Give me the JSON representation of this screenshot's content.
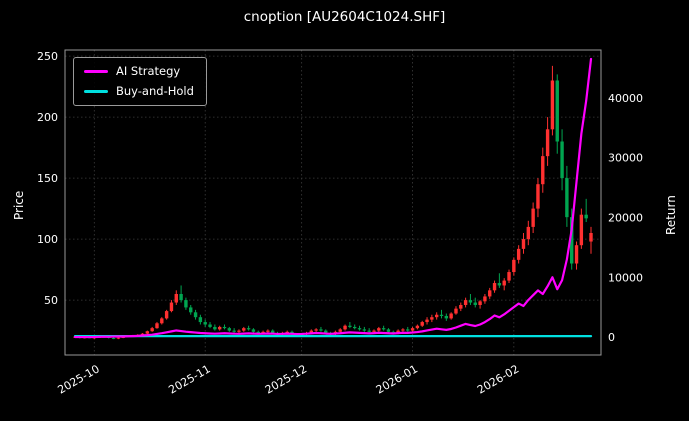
{
  "title": "cnoption [AU2604C1024.SHF]",
  "axes": {
    "left_label": "Price",
    "right_label": "Return"
  },
  "legend": {
    "items": [
      {
        "label": "AI Strategy",
        "color": "#ff00ff"
      },
      {
        "label": "Buy-and-Hold",
        "color": "#00e0e0"
      }
    ]
  },
  "chart_data": {
    "type": "candlestick+line",
    "title": "cnoption [AU2604C1024.SHF]",
    "xlabel": "",
    "ylabel_left": "Price",
    "ylabel_right": "Return",
    "grid": true,
    "legend_position": "upper-left",
    "background": "#000000",
    "text_color": "#ffffff",
    "grid_color": "#3c3c3c",
    "spine_color": "#999999",
    "up_color": "#ff3030",
    "down_color": "#00a550",
    "x_ticklabels": [
      "2025-10",
      "2025-11",
      "2025-12",
      "2026-01",
      "2026-02"
    ],
    "x_tick_indices": [
      4,
      27,
      47,
      70,
      91
    ],
    "left_ticks": [
      50,
      100,
      150,
      200,
      250
    ],
    "right_ticks": [
      0,
      10000,
      20000,
      30000,
      40000
    ],
    "price_range": [
      5,
      255
    ],
    "return_range": [
      -3000,
      48000
    ],
    "candles": [
      [
        19.5,
        20.5,
        19,
        20
      ],
      [
        20,
        20.5,
        18.5,
        19
      ],
      [
        19,
        20,
        18.5,
        19.5
      ],
      [
        19.5,
        20,
        18.8,
        19.2
      ],
      [
        19,
        20,
        18,
        19.5
      ],
      [
        19.5,
        20.5,
        19,
        20
      ],
      [
        20,
        21,
        19.5,
        19.8
      ],
      [
        19.8,
        20.2,
        18.5,
        19
      ],
      [
        19,
        19.5,
        18,
        18.5
      ],
      [
        18.5,
        19.5,
        18,
        19.2
      ],
      [
        19.2,
        20,
        18.8,
        19.8
      ],
      [
        19.8,
        21,
        19.5,
        20.5
      ],
      [
        20.5,
        21.5,
        20,
        21
      ],
      [
        21,
        22,
        20.5,
        21.5
      ],
      [
        21.5,
        23,
        21,
        22.5
      ],
      [
        22.5,
        25,
        22,
        24.5
      ],
      [
        24.5,
        28,
        24,
        27
      ],
      [
        27,
        32,
        26.5,
        31
      ],
      [
        31,
        36,
        30,
        35
      ],
      [
        35,
        42,
        34,
        41
      ],
      [
        41,
        50,
        40,
        48
      ],
      [
        48,
        58,
        46,
        55
      ],
      [
        55,
        62,
        48,
        50
      ],
      [
        50,
        52,
        42,
        44
      ],
      [
        44,
        46,
        38,
        40
      ],
      [
        40,
        42,
        34,
        36
      ],
      [
        36,
        38,
        30,
        32
      ],
      [
        32,
        34,
        28,
        30
      ],
      [
        30,
        32,
        27,
        28
      ],
      [
        28,
        30,
        25,
        26
      ],
      [
        26,
        29,
        25,
        28
      ],
      [
        28,
        30,
        26,
        27
      ],
      [
        27,
        28,
        24,
        25
      ],
      [
        25,
        27,
        23,
        24
      ],
      [
        24,
        26,
        22,
        25
      ],
      [
        25,
        28,
        24,
        27
      ],
      [
        27,
        29,
        25,
        26
      ],
      [
        26,
        27,
        23,
        24
      ],
      [
        24,
        25,
        22,
        23
      ],
      [
        23,
        25,
        22,
        24
      ],
      [
        24,
        26,
        23,
        25
      ],
      [
        25,
        26,
        22,
        23
      ],
      [
        23,
        24,
        21,
        22
      ],
      [
        22,
        24,
        21,
        23
      ],
      [
        23,
        25,
        22,
        24
      ],
      [
        24,
        25,
        21,
        22
      ],
      [
        22,
        23,
        20,
        21
      ],
      [
        21,
        23,
        20,
        22
      ],
      [
        22,
        24,
        21,
        23
      ],
      [
        23,
        26,
        22,
        25
      ],
      [
        25,
        27,
        24,
        26
      ],
      [
        26,
        28,
        24,
        25
      ],
      [
        25,
        26,
        22,
        23
      ],
      [
        23,
        24,
        21,
        22
      ],
      [
        22,
        25,
        21,
        24
      ],
      [
        24,
        27,
        23,
        26
      ],
      [
        26,
        30,
        25,
        29
      ],
      [
        29,
        32,
        27,
        28
      ],
      [
        28,
        30,
        26,
        27
      ],
      [
        27,
        29,
        25,
        26
      ],
      [
        26,
        28,
        24,
        25
      ],
      [
        25,
        27,
        23,
        24
      ],
      [
        24,
        26,
        23,
        25
      ],
      [
        25,
        28,
        24,
        27
      ],
      [
        27,
        29,
        25,
        26
      ],
      [
        26,
        27,
        23,
        24
      ],
      [
        24,
        25,
        22,
        23
      ],
      [
        23,
        26,
        22,
        25
      ],
      [
        25,
        27,
        24,
        26
      ],
      [
        26,
        28,
        24,
        25
      ],
      [
        25,
        28,
        24,
        27
      ],
      [
        27,
        30,
        26,
        29
      ],
      [
        29,
        33,
        28,
        32
      ],
      [
        32,
        36,
        30,
        34
      ],
      [
        34,
        38,
        32,
        36
      ],
      [
        36,
        40,
        34,
        38
      ],
      [
        38,
        42,
        35,
        37
      ],
      [
        37,
        39,
        33,
        35
      ],
      [
        35,
        40,
        34,
        39
      ],
      [
        39,
        45,
        38,
        43
      ],
      [
        43,
        48,
        41,
        46
      ],
      [
        46,
        52,
        44,
        50
      ],
      [
        50,
        55,
        46,
        48
      ],
      [
        48,
        52,
        44,
        46
      ],
      [
        46,
        50,
        43,
        49
      ],
      [
        49,
        55,
        47,
        53
      ],
      [
        53,
        60,
        51,
        58
      ],
      [
        58,
        66,
        56,
        64
      ],
      [
        64,
        72,
        60,
        62
      ],
      [
        62,
        68,
        58,
        66
      ],
      [
        66,
        75,
        64,
        73
      ],
      [
        73,
        85,
        70,
        83
      ],
      [
        83,
        95,
        80,
        92
      ],
      [
        92,
        105,
        88,
        100
      ],
      [
        100,
        115,
        95,
        110
      ],
      [
        110,
        130,
        105,
        125
      ],
      [
        125,
        150,
        118,
        145
      ],
      [
        145,
        175,
        138,
        168
      ],
      [
        168,
        200,
        160,
        190
      ],
      [
        190,
        242,
        185,
        230
      ],
      [
        230,
        235,
        170,
        180
      ],
      [
        180,
        190,
        140,
        150
      ],
      [
        150,
        160,
        110,
        118
      ],
      [
        118,
        125,
        75,
        80
      ],
      [
        80,
        98,
        75,
        95
      ],
      [
        95,
        125,
        92,
        120
      ],
      [
        120,
        133,
        114,
        117
      ],
      [
        98,
        110,
        88,
        105
      ]
    ],
    "series": [
      {
        "name": "AI Strategy",
        "axis": "right",
        "color": "#ff00ff",
        "values": [
          0,
          0,
          0,
          0,
          0,
          30,
          60,
          40,
          80,
          100,
          90,
          130,
          160,
          200,
          260,
          320,
          400,
          520,
          650,
          800,
          950,
          1100,
          1000,
          900,
          820,
          750,
          680,
          640,
          600,
          560,
          600,
          640,
          600,
          560,
          540,
          580,
          620,
          580,
          540,
          560,
          600,
          560,
          520,
          540,
          580,
          540,
          500,
          520,
          560,
          620,
          680,
          640,
          580,
          540,
          580,
          640,
          720,
          780,
          740,
          700,
          660,
          620,
          660,
          720,
          680,
          640,
          600,
          660,
          720,
          700,
          760,
          840,
          950,
          1100,
          1250,
          1400,
          1300,
          1200,
          1350,
          1600,
          1900,
          2200,
          2000,
          1850,
          2100,
          2500,
          3000,
          3600,
          3300,
          3800,
          4400,
          5000,
          5600,
          5200,
          6200,
          7000,
          7800,
          7200,
          8500,
          10000,
          8000,
          9500,
          13000,
          18000,
          26000,
          34000,
          39500,
          46500
        ]
      },
      {
        "name": "Buy-and-Hold",
        "axis": "right",
        "color": "#00e0e0",
        "constant": 150
      }
    ]
  }
}
